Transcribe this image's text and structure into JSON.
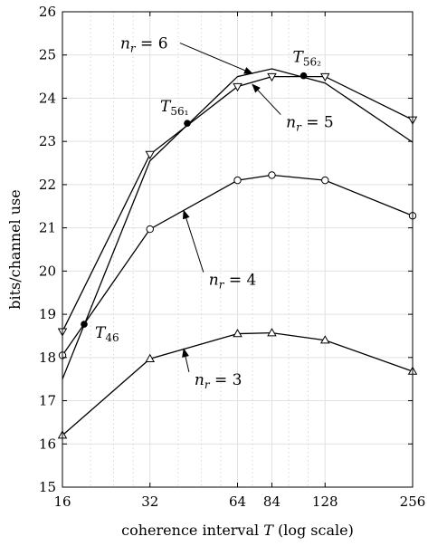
{
  "chart_data": {
    "type": "line",
    "xlabel": "coherence interval T (log scale)",
    "xlabel_parts": [
      "coherence interval ",
      "T",
      " (log scale)"
    ],
    "ylabel": "bits/channel use",
    "xscale": "log2",
    "xlim": [
      16,
      256
    ],
    "ylim": [
      15,
      26
    ],
    "xticks": [
      16,
      32,
      64,
      84,
      128,
      256
    ],
    "yticks": [
      15,
      16,
      17,
      18,
      19,
      20,
      21,
      22,
      23,
      24,
      25,
      26
    ],
    "minor_x_gridlines": [
      20,
      24,
      28,
      40,
      48,
      56,
      72,
      96,
      112
    ],
    "grid": true,
    "series": [
      {
        "name": "n_r = 3",
        "marker": "triangle-up",
        "x": [
          16,
          32,
          64,
          84,
          128,
          256
        ],
        "y": [
          16.2,
          17.97,
          18.55,
          18.57,
          18.4,
          17.68
        ]
      },
      {
        "name": "n_r = 4",
        "marker": "circle",
        "x": [
          16,
          32,
          64,
          84,
          128,
          256
        ],
        "y": [
          18.05,
          20.97,
          22.1,
          22.22,
          22.1,
          21.28
        ]
      },
      {
        "name": "n_r = 5",
        "marker": "triangle-down",
        "x": [
          16,
          32,
          64,
          84,
          128,
          256
        ],
        "y": [
          18.6,
          22.7,
          24.27,
          24.5,
          24.5,
          23.5
        ]
      },
      {
        "name": "n_r = 6",
        "marker": "none",
        "x": [
          16,
          32,
          64,
          84,
          128,
          256
        ],
        "y": [
          17.5,
          22.55,
          24.5,
          24.68,
          24.35,
          22.98
        ]
      }
    ],
    "points": [
      {
        "label_main": "T",
        "label_sub": "46",
        "x": 19,
        "y": 18.77
      },
      {
        "label_main": "T",
        "label_sub": "56₁",
        "x": 43,
        "y": 23.42
      },
      {
        "label_main": "T",
        "label_sub": "56₂",
        "x": 108,
        "y": 24.52
      }
    ],
    "annotations": [
      {
        "text_main": "n",
        "text_sub": "r",
        "text_rest": " = 6",
        "text_x": 25.3,
        "text_y": 25.15,
        "arrow_to": [
          72,
          24.57
        ]
      },
      {
        "text_main": "n",
        "text_sub": "r",
        "text_rest": " = 5",
        "text_x": 94,
        "text_y": 23.33,
        "arrow_to": [
          72,
          24.32
        ]
      },
      {
        "text_main": "n",
        "text_sub": "r",
        "text_rest": " = 4",
        "text_x": 51,
        "text_y": 19.68,
        "arrow_to": [
          41.8,
          21.4
        ]
      },
      {
        "text_main": "n",
        "text_sub": "r",
        "text_rest": " = 3",
        "text_x": 45.5,
        "text_y": 17.37,
        "arrow_to": [
          41.8,
          18.2
        ]
      }
    ]
  }
}
